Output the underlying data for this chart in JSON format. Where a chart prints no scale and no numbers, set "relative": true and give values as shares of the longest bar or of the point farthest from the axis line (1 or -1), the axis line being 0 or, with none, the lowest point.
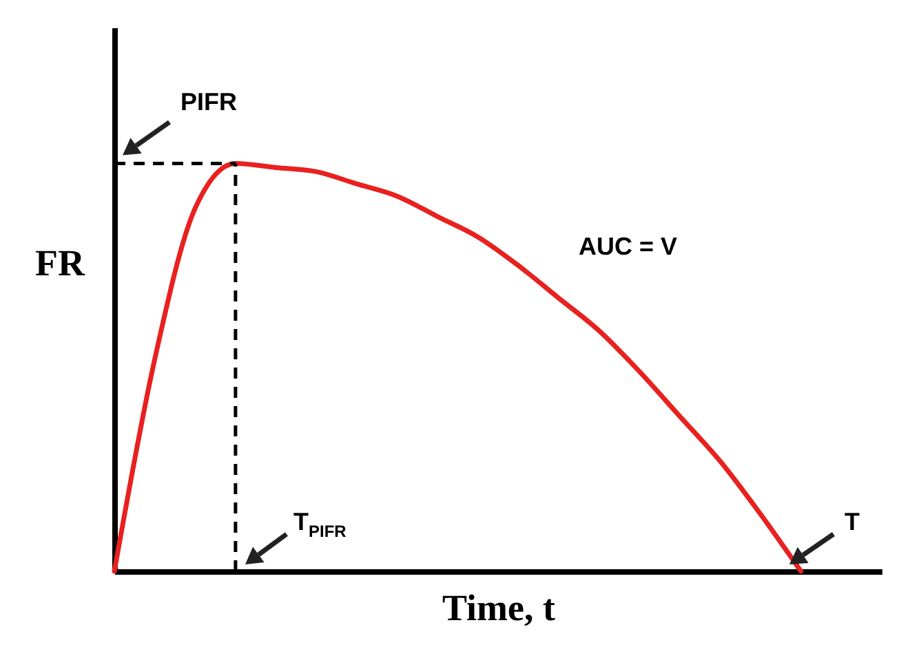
{
  "chart_data": {
    "type": "line",
    "relative": true,
    "xlabel": "Time, t",
    "ylabel": "FR",
    "categories": [
      null,
      null,
      null,
      null,
      null,
      null,
      null,
      null,
      null,
      null,
      null,
      null,
      null,
      null,
      null,
      null,
      null,
      null,
      null,
      null
    ],
    "series": [
      {
        "color": "#e8211f",
        "values": [
          0,
          0.52,
          0.89,
          1,
          0.99,
          0.98,
          0.95,
          0.92,
          0.87,
          0.82,
          0.75,
          0.67,
          0.59,
          0.49,
          0.38,
          0.27,
          0.14,
          0,
          null,
          null
        ]
      }
    ],
    "ref_lines": [
      {
        "axis": "y",
        "value": 1,
        "label": "PIFR",
        "color": "#000000",
        "line_style": "dashed"
      }
    ],
    "annotations": [
      "AUC = V",
      "T$_{PIFR}$",
      "T"
    ],
    "grid": false,
    "marker": "none",
    "line_style": "solid"
  }
}
